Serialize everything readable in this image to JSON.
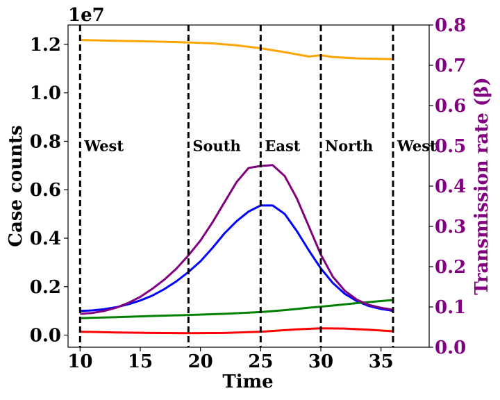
{
  "chart_data": {
    "type": "line",
    "xlabel": "Time",
    "ylabel": "Case counts",
    "y2label": "Transmission rate (β)",
    "offset_text": "1e7",
    "xlim": [
      9,
      39
    ],
    "ylim": [
      -0.05,
      1.28
    ],
    "y2lim": [
      0,
      0.8
    ],
    "xticks": [
      10,
      15,
      20,
      25,
      30,
      35
    ],
    "yticks": [
      0.0,
      0.2,
      0.4,
      0.6,
      0.8,
      1.0,
      1.2
    ],
    "y2ticks": [
      0.0,
      0.1,
      0.2,
      0.3,
      0.4,
      0.5,
      0.6,
      0.7,
      0.8
    ],
    "colors": {
      "orange": "#ffa500",
      "blue": "#0000ff",
      "green": "#008000",
      "red": "#ff0000",
      "purple": "#800080",
      "right_axis": "#800080"
    },
    "series": [
      {
        "color": "orange",
        "axis": "left",
        "x": [
          10,
          13,
          16,
          19,
          21,
          23,
          25,
          27,
          29,
          30,
          31,
          33,
          35,
          36
        ],
        "values": [
          1.218,
          1.215,
          1.212,
          1.208,
          1.204,
          1.196,
          1.184,
          1.168,
          1.15,
          1.155,
          1.148,
          1.142,
          1.14,
          1.139
        ]
      },
      {
        "color": "blue",
        "axis": "left",
        "x": [
          10,
          11,
          12,
          13,
          14,
          15,
          16,
          17,
          18,
          19,
          20,
          21,
          22,
          23,
          24,
          25,
          26,
          27,
          28,
          29,
          30,
          31,
          32,
          33,
          34,
          35,
          36
        ],
        "values": [
          0.1,
          0.102,
          0.107,
          0.115,
          0.127,
          0.143,
          0.163,
          0.19,
          0.222,
          0.26,
          0.305,
          0.36,
          0.42,
          0.47,
          0.51,
          0.535,
          0.535,
          0.5,
          0.43,
          0.35,
          0.275,
          0.215,
          0.17,
          0.14,
          0.12,
          0.108,
          0.1
        ]
      },
      {
        "color": "green",
        "axis": "left",
        "x": [
          10,
          13,
          16,
          19,
          22,
          25,
          27,
          29,
          31,
          33,
          36
        ],
        "values": [
          0.07,
          0.074,
          0.079,
          0.083,
          0.088,
          0.095,
          0.103,
          0.113,
          0.122,
          0.132,
          0.145
        ]
      },
      {
        "color": "red",
        "axis": "left",
        "x": [
          10,
          13,
          16,
          19,
          22,
          25,
          28,
          30,
          32,
          34,
          36
        ],
        "values": [
          0.014,
          0.011,
          0.009,
          0.008,
          0.009,
          0.014,
          0.024,
          0.028,
          0.027,
          0.022,
          0.016
        ]
      },
      {
        "color": "purple",
        "axis": "right",
        "x": [
          10,
          11,
          12,
          13,
          14,
          15,
          16,
          17,
          18,
          19,
          20,
          21,
          22,
          23,
          24,
          25,
          26,
          27,
          28,
          29,
          30,
          31,
          32,
          33,
          34,
          35,
          36
        ],
        "values": [
          0.083,
          0.085,
          0.09,
          0.098,
          0.11,
          0.125,
          0.145,
          0.168,
          0.195,
          0.228,
          0.265,
          0.31,
          0.36,
          0.41,
          0.445,
          0.45,
          0.452,
          0.425,
          0.37,
          0.3,
          0.23,
          0.175,
          0.14,
          0.118,
          0.105,
          0.098,
          0.093
        ]
      }
    ],
    "regions": [
      {
        "x": 10,
        "label": "West"
      },
      {
        "x": 19,
        "label": "South"
      },
      {
        "x": 25,
        "label": "East"
      },
      {
        "x": 30,
        "label": "North"
      },
      {
        "x": 36,
        "label": "West"
      }
    ],
    "region_label_y": 0.76,
    "grid": false,
    "legend": "none"
  }
}
